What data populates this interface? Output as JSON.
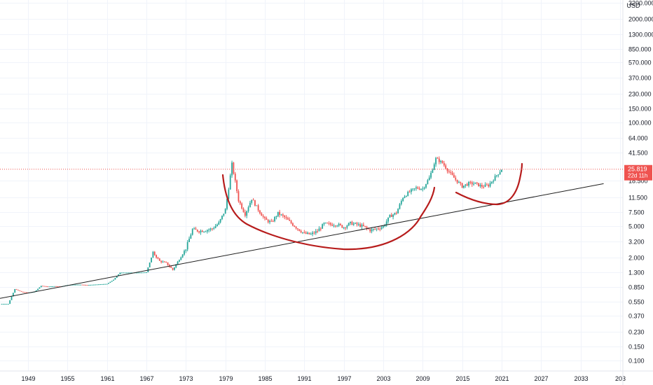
{
  "chart_data": {
    "type": "candlestick",
    "currency": "USD",
    "y_scale": "log",
    "y_ticks": [
      "3200.000",
      "2000.000",
      "1300.000",
      "850.000",
      "570.000",
      "370.000",
      "230.000",
      "150.000",
      "100.000",
      "64.000",
      "41.500",
      "25.819",
      "18.500",
      "11.500",
      "7.500",
      "5.000",
      "3.200",
      "2.000",
      "1.300",
      "0.850",
      "0.550",
      "0.370",
      "0.230",
      "0.150",
      "0.100"
    ],
    "x_ticks": [
      "1949",
      "1955",
      "1961",
      "1967",
      "1973",
      "1979",
      "1985",
      "1991",
      "1997",
      "2003",
      "2009",
      "2015",
      "2021",
      "2027",
      "2033",
      "203"
    ],
    "last_price": 25.819,
    "last_price_label": "25.819",
    "countdown_label": "22d 11h",
    "colors": {
      "up": "#26a69a",
      "down": "#ef5350",
      "annotation": "#b71c1c",
      "trendline": "#1e1e1e",
      "price_line": "#ef5350"
    },
    "series": [
      {
        "points": [
          [
            1945.0,
            0.52
          ],
          [
            1946.0,
            0.52
          ],
          [
            1947.0,
            0.8
          ],
          [
            1948.0,
            0.74
          ],
          [
            1949.0,
            0.72
          ],
          [
            1950.0,
            0.74
          ],
          [
            1951.0,
            0.88
          ],
          [
            1952.0,
            0.86
          ],
          [
            1953.0,
            0.87
          ],
          [
            1954.0,
            0.86
          ],
          [
            1955.0,
            0.9
          ],
          [
            1956.0,
            0.91
          ],
          [
            1957.0,
            0.91
          ],
          [
            1958.0,
            0.9
          ],
          [
            1959.0,
            0.91
          ],
          [
            1960.0,
            0.92
          ],
          [
            1961.0,
            0.93
          ],
          [
            1962.0,
            1.05
          ],
          [
            1963.0,
            1.29
          ],
          [
            1964.0,
            1.29
          ],
          [
            1965.0,
            1.29
          ],
          [
            1966.0,
            1.29
          ],
          [
            1967.0,
            1.3
          ],
          [
            1968.0,
            2.3
          ],
          [
            1969.0,
            1.8
          ],
          [
            1970.0,
            1.7
          ],
          [
            1971.0,
            1.4
          ],
          [
            1972.0,
            1.9
          ],
          [
            1973.0,
            2.6
          ],
          [
            1974.0,
            4.5
          ],
          [
            1975.0,
            4.3
          ],
          [
            1976.0,
            4.4
          ],
          [
            1977.0,
            4.6
          ],
          [
            1978.0,
            5.4
          ],
          [
            1979.0,
            8.0
          ],
          [
            1979.5,
            15.0
          ],
          [
            1980.0,
            30.0
          ],
          [
            1980.5,
            18.0
          ],
          [
            1981.0,
            10.5
          ],
          [
            1982.0,
            7.0
          ],
          [
            1983.0,
            11.0
          ],
          [
            1984.0,
            8.0
          ],
          [
            1985.0,
            6.0
          ],
          [
            1986.0,
            5.5
          ],
          [
            1987.0,
            7.2
          ],
          [
            1988.0,
            6.4
          ],
          [
            1989.0,
            5.4
          ],
          [
            1990.0,
            4.6
          ],
          [
            1991.0,
            4.0
          ],
          [
            1992.0,
            3.9
          ],
          [
            1993.0,
            4.3
          ],
          [
            1994.0,
            5.3
          ],
          [
            1995.0,
            5.2
          ],
          [
            1996.0,
            5.2
          ],
          [
            1997.0,
            4.8
          ],
          [
            1998.0,
            5.4
          ],
          [
            1999.0,
            5.2
          ],
          [
            2000.0,
            4.9
          ],
          [
            2001.0,
            4.4
          ],
          [
            2002.0,
            4.6
          ],
          [
            2003.0,
            4.9
          ],
          [
            2004.0,
            6.6
          ],
          [
            2005.0,
            7.3
          ],
          [
            2006.0,
            11.5
          ],
          [
            2007.0,
            13.4
          ],
          [
            2008.0,
            15.0
          ],
          [
            2009.0,
            14.7
          ],
          [
            2010.0,
            20.0
          ],
          [
            2011.0,
            35.0
          ],
          [
            2012.0,
            31.0
          ],
          [
            2013.0,
            23.8
          ],
          [
            2014.0,
            19.1
          ],
          [
            2015.0,
            15.7
          ],
          [
            2016.0,
            17.1
          ],
          [
            2017.0,
            17.0
          ],
          [
            2018.0,
            15.7
          ],
          [
            2019.0,
            16.2
          ],
          [
            2020.0,
            20.5
          ],
          [
            2021.0,
            25.8
          ]
        ]
      }
    ],
    "trendline": [
      [
        1937.5,
        0.47
      ],
      [
        2036.5,
        17.0
      ]
    ]
  }
}
